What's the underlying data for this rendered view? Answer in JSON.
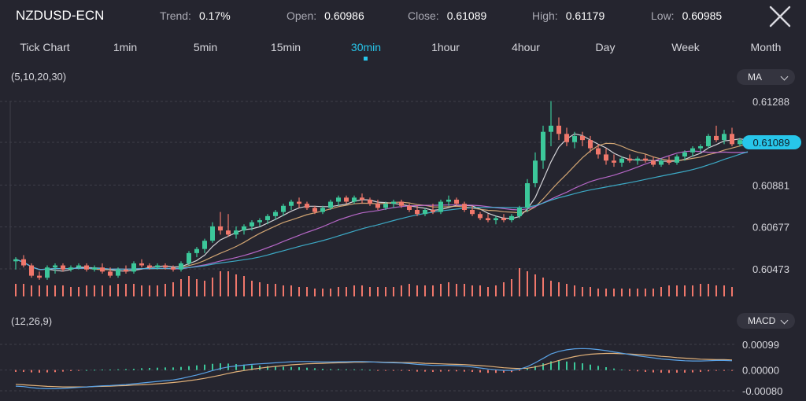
{
  "header": {
    "symbol": "NZDUSD-ECN",
    "trend_label": "Trend:",
    "trend_value": "0.17%",
    "open_label": "Open:",
    "open_value": "0.60986",
    "close_label": "Close:",
    "close_value": "0.61089",
    "high_label": "High:",
    "high_value": "0.61179",
    "low_label": "Low:",
    "low_value": "0.60985",
    "close_icon": "close-x-icon"
  },
  "timeframes": [
    "Tick Chart",
    "1min",
    "5min",
    "15min",
    "30min",
    "1hour",
    "4hour",
    "Day",
    "Week",
    "Month"
  ],
  "active_timeframe": "30min",
  "main_panel": {
    "indicator_params": "(5,10,20,30)",
    "indicator_select": "MA"
  },
  "macd_panel": {
    "indicator_params": "(12,26,9)",
    "indicator_select": "MACD"
  },
  "colors": {
    "background": "#25252f",
    "accent": "#27c6ea",
    "up": "#3cc79a",
    "down": "#f0776b",
    "ma5": "#e7e7ea",
    "ma10": "#e3b27a",
    "ma20": "#c76fd8",
    "ma30": "#3fb8d6",
    "dif": "#5aa2e6",
    "dea": "#e3b27a"
  },
  "chart_data": [
    {
      "type": "candlestick",
      "title": "NZDUSD-ECN 30min",
      "y_ticks": [
        "0.61288",
        "0.61089",
        "0.60881",
        "0.60677",
        "0.60473"
      ],
      "ylim": [
        0.60473,
        0.61288
      ],
      "current_price": "0.61089",
      "grid": true,
      "ohlc": [
        [
          0.6051,
          0.6053,
          0.6047,
          0.6052
        ],
        [
          0.6052,
          0.6054,
          0.6048,
          0.6049
        ],
        [
          0.6049,
          0.605,
          0.6043,
          0.6044
        ],
        [
          0.6044,
          0.6046,
          0.6042,
          0.6043
        ],
        [
          0.6043,
          0.6049,
          0.6042,
          0.6048
        ],
        [
          0.6048,
          0.605,
          0.6045,
          0.6049
        ],
        [
          0.6049,
          0.605,
          0.6046,
          0.6047
        ],
        [
          0.6047,
          0.6049,
          0.6046,
          0.6048
        ],
        [
          0.6048,
          0.605,
          0.6047,
          0.6049
        ],
        [
          0.6049,
          0.605,
          0.6046,
          0.6047
        ],
        [
          0.6047,
          0.6049,
          0.6046,
          0.6048
        ],
        [
          0.6048,
          0.605,
          0.6045,
          0.6046
        ],
        [
          0.6046,
          0.6048,
          0.6043,
          0.6044
        ],
        [
          0.6044,
          0.6048,
          0.6043,
          0.6047
        ],
        [
          0.6047,
          0.6049,
          0.6045,
          0.6046
        ],
        [
          0.6046,
          0.6051,
          0.6045,
          0.605
        ],
        [
          0.605,
          0.6052,
          0.6048,
          0.6049
        ],
        [
          0.6049,
          0.605,
          0.6047,
          0.6048
        ],
        [
          0.6048,
          0.605,
          0.6047,
          0.6049
        ],
        [
          0.6049,
          0.605,
          0.6047,
          0.6048
        ],
        [
          0.6048,
          0.6049,
          0.6046,
          0.6047
        ],
        [
          0.6047,
          0.6051,
          0.6046,
          0.605
        ],
        [
          0.605,
          0.6056,
          0.6049,
          0.6055
        ],
        [
          0.6055,
          0.6058,
          0.6053,
          0.6057
        ],
        [
          0.6057,
          0.6062,
          0.6055,
          0.6061
        ],
        [
          0.6061,
          0.607,
          0.606,
          0.6068
        ],
        [
          0.6068,
          0.6075,
          0.6064,
          0.6066
        ],
        [
          0.6066,
          0.6074,
          0.6063,
          0.6064
        ],
        [
          0.6064,
          0.6068,
          0.6062,
          0.6066
        ],
        [
          0.6066,
          0.6069,
          0.6064,
          0.6068
        ],
        [
          0.6068,
          0.6071,
          0.6066,
          0.607
        ],
        [
          0.607,
          0.6072,
          0.6068,
          0.6071
        ],
        [
          0.6071,
          0.6074,
          0.6069,
          0.6073
        ],
        [
          0.6073,
          0.6076,
          0.6071,
          0.6075
        ],
        [
          0.6075,
          0.6079,
          0.6073,
          0.6078
        ],
        [
          0.6078,
          0.6081,
          0.6076,
          0.608
        ],
        [
          0.608,
          0.6082,
          0.6077,
          0.6079
        ],
        [
          0.6079,
          0.608,
          0.6076,
          0.6077
        ],
        [
          0.6077,
          0.6078,
          0.6074,
          0.6075
        ],
        [
          0.6075,
          0.6078,
          0.6074,
          0.6077
        ],
        [
          0.6077,
          0.6081,
          0.6076,
          0.608
        ],
        [
          0.608,
          0.6083,
          0.6078,
          0.6082
        ],
        [
          0.6082,
          0.6083,
          0.6079,
          0.608
        ],
        [
          0.608,
          0.6083,
          0.6079,
          0.6082
        ],
        [
          0.6082,
          0.6084,
          0.6079,
          0.6081
        ],
        [
          0.6081,
          0.6082,
          0.6078,
          0.6079
        ],
        [
          0.6079,
          0.6081,
          0.6076,
          0.6077
        ],
        [
          0.6077,
          0.608,
          0.6076,
          0.6079
        ],
        [
          0.6079,
          0.6081,
          0.6077,
          0.608
        ],
        [
          0.608,
          0.6081,
          0.6077,
          0.6078
        ],
        [
          0.6078,
          0.6079,
          0.6075,
          0.6076
        ],
        [
          0.6076,
          0.6078,
          0.6073,
          0.6074
        ],
        [
          0.6074,
          0.6077,
          0.6073,
          0.6076
        ],
        [
          0.6076,
          0.6079,
          0.6074,
          0.6075
        ],
        [
          0.6075,
          0.6081,
          0.6074,
          0.608
        ],
        [
          0.608,
          0.6083,
          0.6078,
          0.6081
        ],
        [
          0.6081,
          0.6082,
          0.6078,
          0.6079
        ],
        [
          0.6079,
          0.608,
          0.6075,
          0.6076
        ],
        [
          0.6076,
          0.6078,
          0.6073,
          0.6074
        ],
        [
          0.6074,
          0.6075,
          0.6071,
          0.6072
        ],
        [
          0.6072,
          0.6074,
          0.607,
          0.6071
        ],
        [
          0.6071,
          0.6073,
          0.6069,
          0.6072
        ],
        [
          0.6072,
          0.6074,
          0.607,
          0.6071
        ],
        [
          0.6071,
          0.6074,
          0.607,
          0.6073
        ],
        [
          0.6073,
          0.6078,
          0.6072,
          0.6077
        ],
        [
          0.6077,
          0.6091,
          0.6075,
          0.6089
        ],
        [
          0.6089,
          0.6104,
          0.6087,
          0.61
        ],
        [
          0.61,
          0.6117,
          0.6096,
          0.6114
        ],
        [
          0.6114,
          0.6129,
          0.6107,
          0.6117
        ],
        [
          0.6117,
          0.6121,
          0.611,
          0.6113
        ],
        [
          0.6113,
          0.6116,
          0.6107,
          0.6109
        ],
        [
          0.6109,
          0.6114,
          0.6106,
          0.6112
        ],
        [
          0.6112,
          0.6114,
          0.6107,
          0.611
        ],
        [
          0.611,
          0.6112,
          0.6104,
          0.6106
        ],
        [
          0.6106,
          0.6108,
          0.6101,
          0.6103
        ],
        [
          0.6103,
          0.6106,
          0.6098,
          0.61
        ],
        [
          0.61,
          0.6103,
          0.6097,
          0.6099
        ],
        [
          0.6099,
          0.6102,
          0.6097,
          0.6101
        ],
        [
          0.6101,
          0.6103,
          0.6099,
          0.61
        ],
        [
          0.61,
          0.6102,
          0.6098,
          0.6101
        ],
        [
          0.6101,
          0.6103,
          0.6099,
          0.61
        ],
        [
          0.61,
          0.6102,
          0.6097,
          0.6098
        ],
        [
          0.6098,
          0.6101,
          0.6097,
          0.61
        ],
        [
          0.61,
          0.6102,
          0.6098,
          0.6099
        ],
        [
          0.6099,
          0.6103,
          0.6098,
          0.6102
        ],
        [
          0.6102,
          0.6105,
          0.61,
          0.6104
        ],
        [
          0.6104,
          0.6107,
          0.6102,
          0.6106
        ],
        [
          0.6106,
          0.6108,
          0.6104,
          0.6107
        ],
        [
          0.6107,
          0.6113,
          0.6106,
          0.6112
        ],
        [
          0.6112,
          0.6117,
          0.6109,
          0.611
        ],
        [
          0.611,
          0.6115,
          0.6108,
          0.6113
        ],
        [
          0.6113,
          0.6116,
          0.6107,
          0.6108
        ],
        [
          0.6108,
          0.6111,
          0.6107,
          0.611
        ],
        [
          0.611,
          0.6111,
          0.6107,
          0.6109
        ]
      ],
      "volume": [
        8,
        8,
        7,
        7,
        7,
        7,
        7,
        6,
        6,
        7,
        7,
        7,
        7,
        8,
        8,
        8,
        7,
        7,
        7,
        8,
        9,
        11,
        13,
        11,
        10,
        12,
        16,
        16,
        14,
        13,
        10,
        9,
        8,
        8,
        7,
        7,
        6,
        6,
        5,
        5,
        5,
        6,
        6,
        7,
        7,
        6,
        6,
        6,
        6,
        7,
        8,
        7,
        7,
        7,
        8,
        9,
        8,
        8,
        7,
        7,
        6,
        7,
        9,
        11,
        18,
        16,
        14,
        12,
        10,
        9,
        8,
        7,
        6,
        6,
        5,
        5,
        5,
        5,
        5,
        5,
        5,
        5,
        6,
        7,
        7,
        7,
        7,
        8,
        8,
        7,
        7,
        6
      ]
    },
    {
      "type": "macd",
      "params": "(12,26,9)",
      "y_ticks": [
        "0.00099",
        "0.00000",
        "-0.00080"
      ],
      "ylim": [
        -0.0008,
        0.00099
      ],
      "dif": [
        -0.00062,
        -0.00064,
        -0.00068,
        -0.00071,
        -0.00072,
        -0.00072,
        -0.00071,
        -0.00069,
        -0.00067,
        -0.00065,
        -0.00063,
        -0.00061,
        -0.0006,
        -0.00058,
        -0.00056,
        -0.00053,
        -0.0005,
        -0.00047,
        -0.00044,
        -0.00041,
        -0.00038,
        -0.00033,
        -0.00026,
        -0.00019,
        -0.00011,
        -2e-05,
        6e-05,
        0.00012,
        0.00016,
        0.00019,
        0.00022,
        0.00024,
        0.00026,
        0.00028,
        0.0003,
        0.00032,
        0.00033,
        0.00033,
        0.00032,
        0.00031,
        0.00031,
        0.00032,
        0.00032,
        0.00033,
        0.00033,
        0.00032,
        0.0003,
        0.00029,
        0.00028,
        0.00027,
        0.00025,
        0.00022,
        0.0002,
        0.00018,
        0.00018,
        0.00018,
        0.00017,
        0.00015,
        0.00012,
        8e-05,
        4e-05,
        1e-05,
        -1e-05,
        -1e-05,
        3e-05,
        0.00013,
        0.00028,
        0.00045,
        0.00062,
        0.00072,
        0.00078,
        0.00082,
        0.00083,
        0.00082,
        0.00079,
        0.00075,
        0.0007,
        0.00065,
        0.0006,
        0.00055,
        0.00051,
        0.00047,
        0.00043,
        0.0004,
        0.00038,
        0.00036,
        0.00035,
        0.00035,
        0.00036,
        0.00037,
        0.00037,
        0.00036
      ],
      "dea": [
        -0.00055,
        -0.00057,
        -0.00059,
        -0.00061,
        -0.00063,
        -0.00064,
        -0.00065,
        -0.00065,
        -0.00065,
        -0.00065,
        -0.00064,
        -0.00063,
        -0.00062,
        -0.00061,
        -0.0006,
        -0.00058,
        -0.00057,
        -0.00055,
        -0.00053,
        -0.00051,
        -0.00048,
        -0.00045,
        -0.00041,
        -0.00037,
        -0.00032,
        -0.00026,
        -0.0002,
        -0.00013,
        -7e-05,
        -2e-05,
        3e-05,
        7e-05,
        0.00011,
        0.00014,
        0.00017,
        0.0002,
        0.00022,
        0.00024,
        0.00025,
        0.00026,
        0.00027,
        0.00028,
        0.00029,
        0.0003,
        0.0003,
        0.00031,
        0.00031,
        0.0003,
        0.0003,
        0.00029,
        0.00029,
        0.00028,
        0.00026,
        0.00025,
        0.00024,
        0.00023,
        0.00022,
        0.00021,
        0.00019,
        0.00017,
        0.00015,
        0.00012,
        9e-05,
        7e-05,
        6e-05,
        7e-05,
        0.00012,
        0.00019,
        0.00028,
        0.00037,
        0.00045,
        0.00052,
        0.00057,
        0.00061,
        0.00063,
        0.00064,
        0.00064,
        0.00063,
        0.00062,
        0.0006,
        0.00058,
        0.00056,
        0.00053,
        0.00051,
        0.00048,
        0.00046,
        0.00044,
        0.00042,
        0.00041,
        0.0004,
        0.0004,
        0.00039
      ]
    }
  ]
}
